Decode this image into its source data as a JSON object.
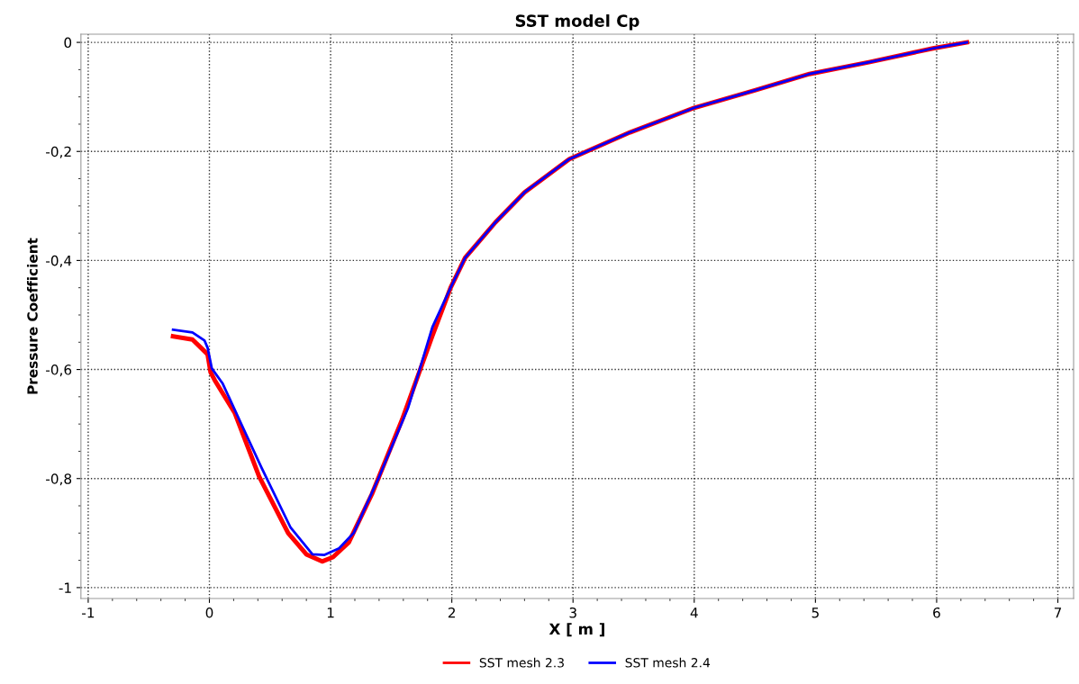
{
  "chart_data": {
    "type": "line",
    "title": "SST model Cp",
    "xlabel": "X [ m ]",
    "ylabel": "Pressure Coefficient",
    "xlim": [
      -1.06,
      7.13
    ],
    "ylim": [
      -1.02,
      0.015
    ],
    "xticks": [
      -1,
      0,
      1,
      2,
      3,
      4,
      5,
      6,
      7
    ],
    "yticks": [
      {
        "value": -1,
        "label": "-1"
      },
      {
        "value": -0.8,
        "label": "-0,8"
      },
      {
        "value": -0.6,
        "label": "-0,6"
      },
      {
        "value": -0.4,
        "label": "-0,4"
      },
      {
        "value": -0.2,
        "label": "-0,2"
      },
      {
        "value": 0,
        "label": "0"
      }
    ],
    "grid": true,
    "legend": "bottom",
    "line_style": "solid",
    "marker": "none",
    "series": [
      {
        "name": "SST mesh 2.3",
        "color": "#ff0000",
        "x": [
          -0.3,
          -0.14,
          -0.07,
          -0.015,
          0.01,
          0.045,
          0.21,
          0.41,
          0.65,
          0.8,
          0.93,
          1.02,
          1.15,
          1.34,
          1.59,
          1.84,
          1.99,
          2.11,
          2.36,
          2.6,
          2.97,
          3.47,
          4.0,
          4.5,
          4.95,
          5.45,
          5.97,
          6.25
        ],
        "values": [
          -0.539,
          -0.545,
          -0.56,
          -0.572,
          -0.605,
          -0.62,
          -0.68,
          -0.796,
          -0.9,
          -0.939,
          -0.952,
          -0.944,
          -0.917,
          -0.829,
          -0.692,
          -0.538,
          -0.45,
          -0.395,
          -0.33,
          -0.275,
          -0.214,
          -0.165,
          -0.12,
          -0.088,
          -0.058,
          -0.036,
          -0.011,
          0.0
        ]
      },
      {
        "name": "SST mesh 2.4",
        "color": "#0000ff",
        "x": [
          -0.3,
          -0.14,
          -0.04,
          -0.015,
          0.02,
          0.11,
          0.28,
          0.43,
          0.67,
          0.85,
          0.95,
          1.07,
          1.19,
          1.39,
          1.64,
          1.84,
          1.99,
          2.11,
          2.36,
          2.6,
          2.97,
          3.47,
          4.0,
          4.5,
          4.95,
          5.45,
          5.97,
          6.25
        ],
        "values": [
          -0.527,
          -0.532,
          -0.547,
          -0.56,
          -0.598,
          -0.626,
          -0.708,
          -0.78,
          -0.89,
          -0.939,
          -0.94,
          -0.928,
          -0.9,
          -0.802,
          -0.67,
          -0.522,
          -0.45,
          -0.395,
          -0.33,
          -0.275,
          -0.214,
          -0.165,
          -0.12,
          -0.088,
          -0.058,
          -0.036,
          -0.011,
          0.0
        ]
      }
    ]
  }
}
